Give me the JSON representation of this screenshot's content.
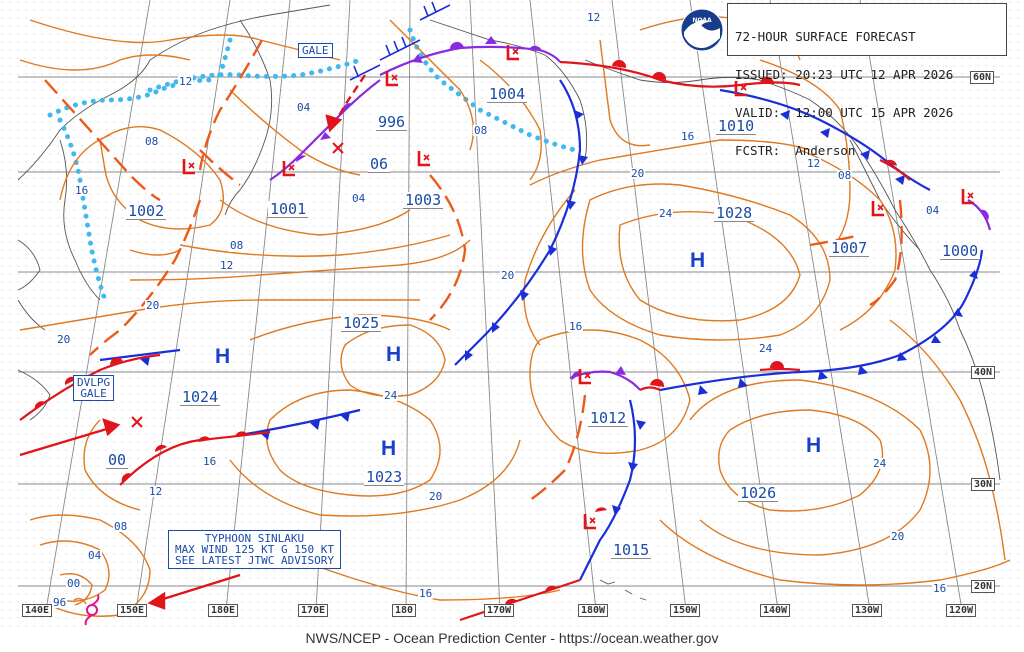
{
  "header": {
    "line1": "72-HOUR SURFACE FORECAST",
    "line2": "ISSUED: 20:23 UTC 12 APR 2026",
    "line3": "VALID:  12:00 UTC 15 APR 2026",
    "line4": "FCSTR:  Anderson"
  },
  "footer": "NWS/NCEP - Ocean Prediction Center - https://ocean.weather.gov",
  "logo_text": "NOAA",
  "lat_labels": [
    "60N",
    "40N",
    "30N",
    "20N"
  ],
  "lon_labels": [
    "140E",
    "150E",
    "180E",
    "170E",
    "180",
    "170W",
    "180W",
    "150W",
    "140W",
    "130W",
    "120W"
  ],
  "pressure_labels": [
    "1004",
    "996",
    "06",
    "1010",
    "1002",
    "1001",
    "1003",
    "1028",
    "1007",
    "1000",
    "1025",
    "1024",
    "1012",
    "00",
    "1023",
    "1026",
    "1015"
  ],
  "isobar_labels": [
    "12",
    "12",
    "04",
    "08",
    "16",
    "08",
    "04",
    "08",
    "20",
    "24",
    "12",
    "08",
    "04",
    "16",
    "08",
    "12",
    "20",
    "20",
    "16",
    "20",
    "24",
    "24",
    "16",
    "12",
    "24",
    "20",
    "20",
    "08",
    "04",
    "00",
    "96",
    "16",
    "16"
  ],
  "highs": [
    "H",
    "H",
    "H",
    "H",
    "H"
  ],
  "boxes": {
    "gale": "GALE",
    "dvlpg_gale": "DVLPG\nGALE",
    "typhoon": "TYPHOON SINLAKU\nMAX WIND 125 KT G 150 KT\nSEE LATEST JTWC ADVISORY"
  },
  "colors": {
    "isobar": "#e07a20",
    "cold_front": "#1a2fd8",
    "warm_front": "#e0141a",
    "occluded_front": "#8a2be2",
    "ice_edge": "#42b8f0",
    "trough": "#ec5a1a",
    "grid": "#888888",
    "coast": "#555555",
    "text": "#1a4ba8"
  }
}
